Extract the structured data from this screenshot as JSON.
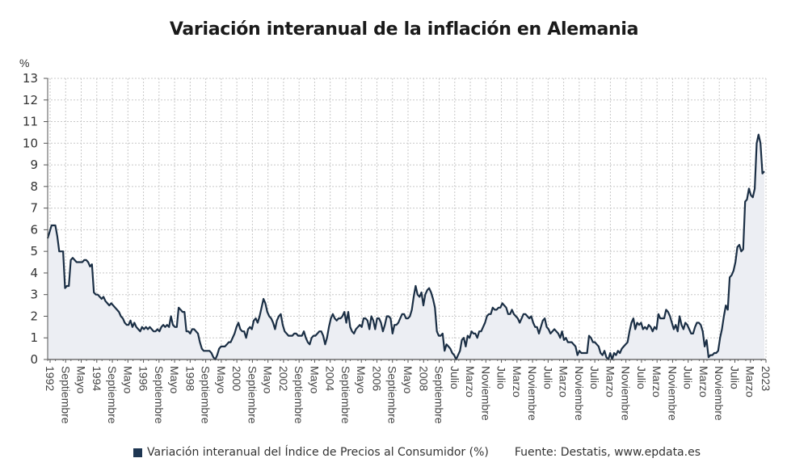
{
  "chart_data": {
    "type": "area",
    "title": "Variación interanual de la inflación en Alemania",
    "ylabel": "%",
    "ylim": [
      0,
      13
    ],
    "yticks": [
      0,
      1,
      2,
      3,
      4,
      5,
      6,
      7,
      8,
      9,
      10,
      11,
      12,
      13
    ],
    "grid": true,
    "x_start": "1992-01",
    "x_end": "2023-01",
    "x_frequency": "monthly",
    "xtick_labels": [
      "1992",
      "Septiembre",
      "Mayo",
      "1994",
      "Septiembre",
      "Mayo",
      "1996",
      "Septiembre",
      "Mayo",
      "1998",
      "Septiembre",
      "Mayo",
      "2000",
      "Septiembre",
      "Mayo",
      "2002",
      "Septiembre",
      "Mayo",
      "2004",
      "Septiembre",
      "Mayo",
      "2006",
      "Septiembre",
      "Mayo",
      "2008",
      "Septiembre",
      "Julio",
      "Marzo",
      "Noviembre",
      "Julio",
      "Marzo",
      "Noviembre",
      "Julio",
      "Marzo",
      "Noviembre",
      "Julio",
      "Marzo",
      "Noviembre",
      "Julio",
      "Marzo",
      "Noviembre",
      "Julio",
      "Marzo",
      "Noviembre",
      "Julio",
      "Marzo",
      "2023"
    ],
    "series": [
      {
        "name": "Variación interanual del Índice de Precios al Consumidor (%)",
        "color": "#1b2f45",
        "fill": "#eceef3",
        "values": [
          5.6,
          5.9,
          6.2,
          6.2,
          6.2,
          5.7,
          5.0,
          5.0,
          5.0,
          3.3,
          3.4,
          3.4,
          4.6,
          4.7,
          4.6,
          4.5,
          4.5,
          4.5,
          4.5,
          4.6,
          4.6,
          4.5,
          4.3,
          4.4,
          3.1,
          3.0,
          3.0,
          2.9,
          2.8,
          2.9,
          2.7,
          2.6,
          2.5,
          2.6,
          2.5,
          2.4,
          2.3,
          2.2,
          2.0,
          1.9,
          1.7,
          1.6,
          1.6,
          1.8,
          1.5,
          1.7,
          1.5,
          1.4,
          1.3,
          1.5,
          1.4,
          1.5,
          1.4,
          1.5,
          1.4,
          1.3,
          1.3,
          1.4,
          1.3,
          1.5,
          1.6,
          1.5,
          1.6,
          1.5,
          2.0,
          1.6,
          1.5,
          1.5,
          2.4,
          2.3,
          2.2,
          2.2,
          1.3,
          1.3,
          1.2,
          1.4,
          1.4,
          1.3,
          1.2,
          0.8,
          0.5,
          0.4,
          0.4,
          0.4,
          0.4,
          0.3,
          0.1,
          0.0,
          0.2,
          0.5,
          0.6,
          0.6,
          0.6,
          0.7,
          0.8,
          0.8,
          1.0,
          1.2,
          1.5,
          1.7,
          1.4,
          1.3,
          1.3,
          1.0,
          1.4,
          1.5,
          1.4,
          1.8,
          1.9,
          1.7,
          2.0,
          2.4,
          2.8,
          2.6,
          2.2,
          2.0,
          1.9,
          1.7,
          1.4,
          1.8,
          2.0,
          2.1,
          1.6,
          1.3,
          1.2,
          1.1,
          1.1,
          1.1,
          1.2,
          1.2,
          1.1,
          1.1,
          1.1,
          1.3,
          1.0,
          0.8,
          0.7,
          1.0,
          1.1,
          1.1,
          1.2,
          1.3,
          1.3,
          1.1,
          0.7,
          1.0,
          1.5,
          1.9,
          2.1,
          1.9,
          1.8,
          1.9,
          1.9,
          2.0,
          2.2,
          1.7,
          2.2,
          1.5,
          1.3,
          1.2,
          1.4,
          1.5,
          1.6,
          1.5,
          1.9,
          1.9,
          1.8,
          1.4,
          2.0,
          1.8,
          1.4,
          1.9,
          1.9,
          1.7,
          1.3,
          1.6,
          2.0,
          2.0,
          1.9,
          1.2,
          1.6,
          1.6,
          1.7,
          1.9,
          2.1,
          2.1,
          1.9,
          1.9,
          2.0,
          2.3,
          2.9,
          3.4,
          3.0,
          2.9,
          3.1,
          2.5,
          3.0,
          3.2,
          3.3,
          3.1,
          2.8,
          2.4,
          1.3,
          1.1,
          1.1,
          1.2,
          0.4,
          0.7,
          0.6,
          0.5,
          0.3,
          0.2,
          0.0,
          0.2,
          0.4,
          0.9,
          1.0,
          0.6,
          1.1,
          1.0,
          1.3,
          1.2,
          1.2,
          1.0,
          1.3,
          1.3,
          1.5,
          1.7,
          2.0,
          2.1,
          2.1,
          2.4,
          2.3,
          2.3,
          2.4,
          2.4,
          2.6,
          2.5,
          2.4,
          2.1,
          2.1,
          2.3,
          2.1,
          2.0,
          1.9,
          1.7,
          1.9,
          2.1,
          2.1,
          2.0,
          1.9,
          2.0,
          1.7,
          1.5,
          1.5,
          1.2,
          1.5,
          1.8,
          1.9,
          1.5,
          1.4,
          1.2,
          1.3,
          1.4,
          1.3,
          1.2,
          1.0,
          1.3,
          0.9,
          1.0,
          0.8,
          0.8,
          0.8,
          0.7,
          0.6,
          0.2,
          0.4,
          0.3,
          0.3,
          0.3,
          0.3,
          1.1,
          1.0,
          0.8,
          0.8,
          0.7,
          0.6,
          0.3,
          0.2,
          0.4,
          0.1,
          0.0,
          0.3,
          0.0,
          0.3,
          0.2,
          0.4,
          0.3,
          0.5,
          0.6,
          0.7,
          0.8,
          1.3,
          1.7,
          1.9,
          1.4,
          1.7,
          1.6,
          1.7,
          1.4,
          1.5,
          1.4,
          1.6,
          1.5,
          1.3,
          1.5,
          1.4,
          2.1,
          1.9,
          1.9,
          1.9,
          2.3,
          2.2,
          2.0,
          1.7,
          1.4,
          1.6,
          1.3,
          2.0,
          1.6,
          1.4,
          1.7,
          1.6,
          1.4,
          1.2,
          1.2,
          1.5,
          1.7,
          1.7,
          1.6,
          1.3,
          0.6,
          0.9,
          0.1,
          0.2,
          0.2,
          0.3,
          0.3,
          0.4,
          1.0,
          1.4,
          2.0,
          2.5,
          2.3,
          3.8,
          3.9,
          4.1,
          4.5,
          5.2,
          5.3,
          5.0,
          5.1,
          7.3,
          7.4,
          7.9,
          7.6,
          7.5,
          7.9,
          10.0,
          10.4,
          10.0,
          8.6,
          8.7
        ]
      }
    ],
    "legend": "bottom",
    "source": "Fuente: Destatis, www.epdata.es"
  }
}
